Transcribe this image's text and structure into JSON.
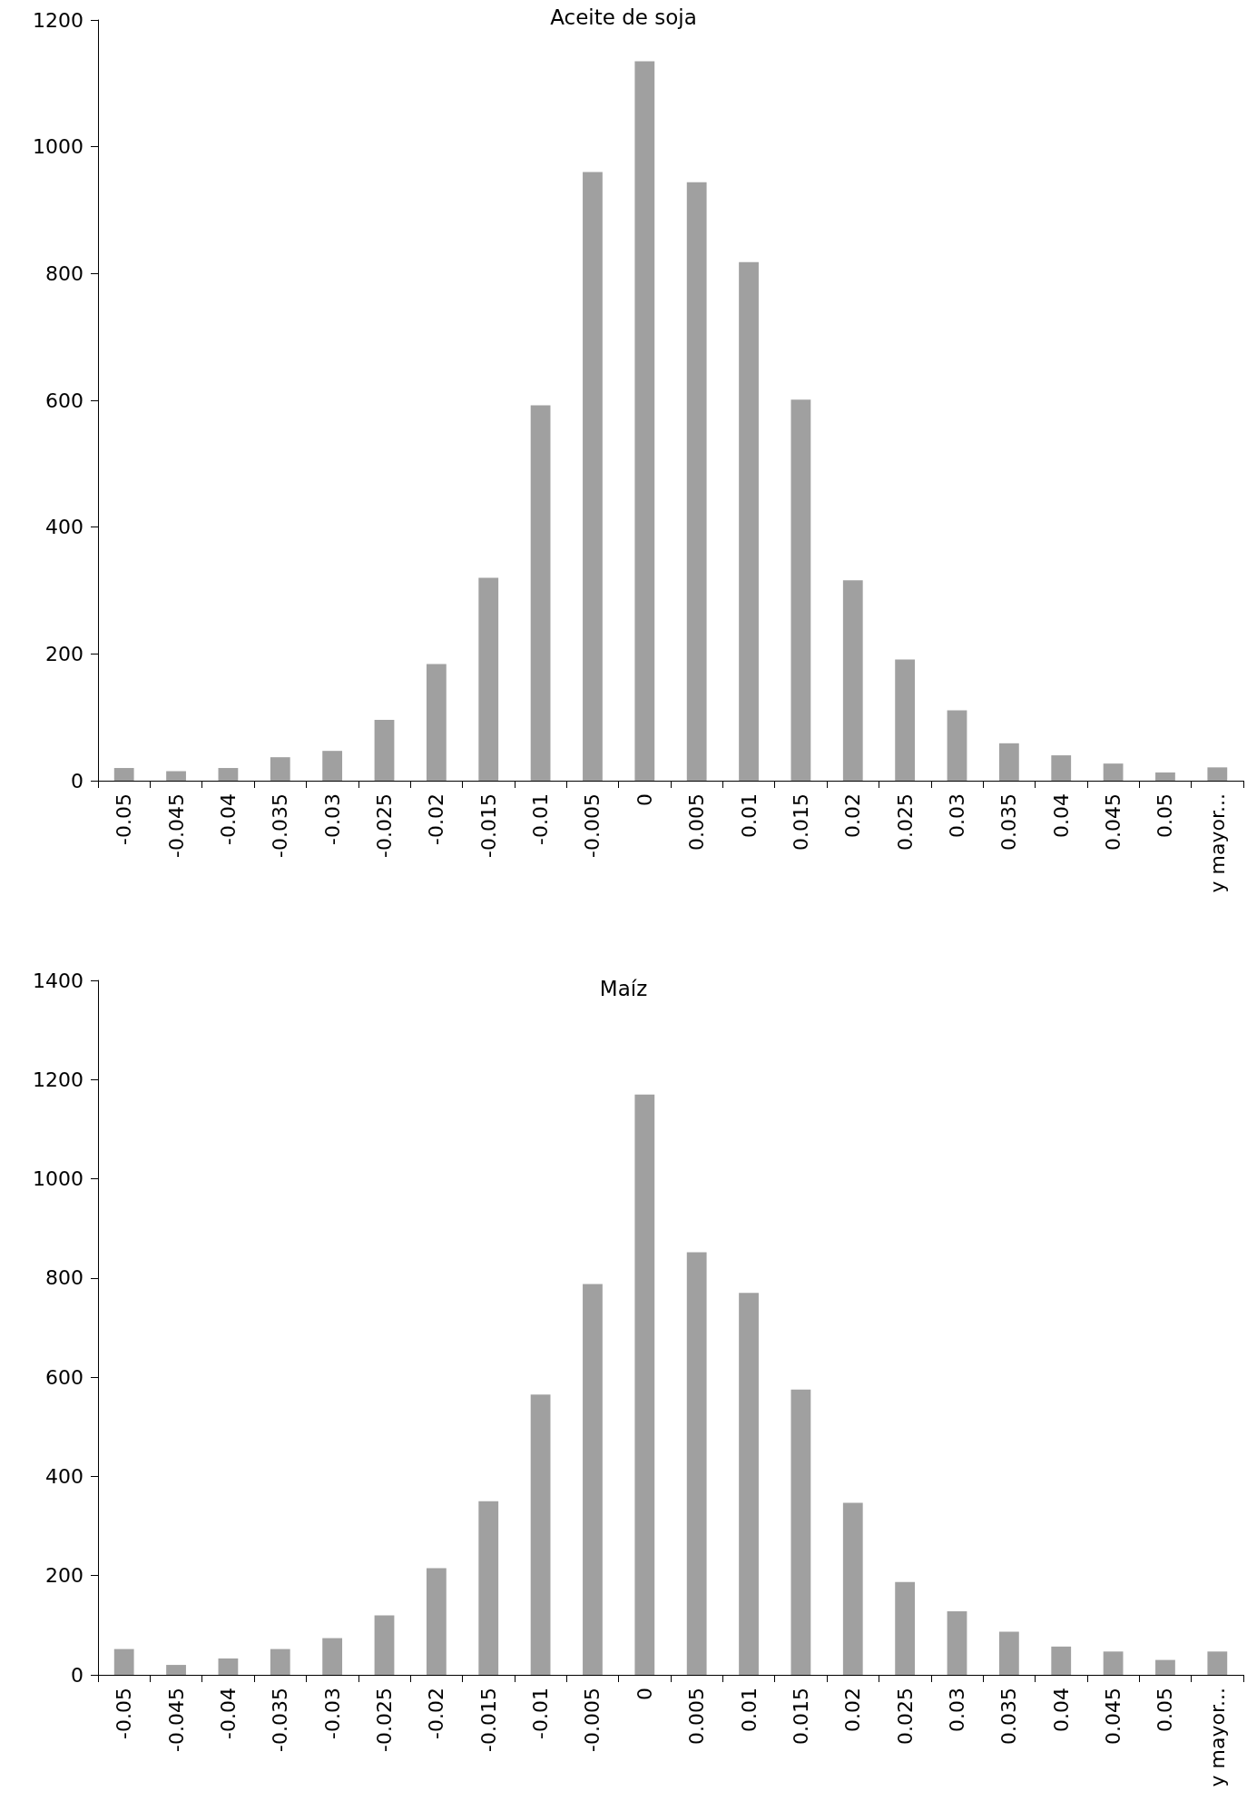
{
  "chart_data": [
    {
      "type": "bar",
      "title": "Aceite de soja",
      "categories": [
        "-0.05",
        "-0.045",
        "-0.04",
        "-0.035",
        "-0.03",
        "-0.025",
        "-0.02",
        "-0.015",
        "-0.01",
        "-0.005",
        "0",
        "0.005",
        "0.01",
        "0.015",
        "0.02",
        "0.025",
        "0.03",
        "0.035",
        "0.04",
        "0.045",
        "0.05",
        "y mayor..."
      ],
      "values": [
        20,
        15,
        20,
        37,
        47,
        96,
        184,
        320,
        592,
        960,
        1135,
        944,
        818,
        601,
        316,
        191,
        111,
        59,
        40,
        27,
        13,
        21
      ],
      "color": "#a0a0a0",
      "ylim": [
        0,
        1200
      ],
      "yticks": [
        0,
        200,
        400,
        600,
        800,
        1000,
        1200
      ],
      "grid": false
    },
    {
      "type": "bar",
      "title": "Maíz",
      "categories": [
        "-0.05",
        "-0.045",
        "-0.04",
        "-0.035",
        "-0.03",
        "-0.025",
        "-0.02",
        "-0.015",
        "-0.01",
        "-0.005",
        "0",
        "0.005",
        "0.01",
        "0.015",
        "0.02",
        "0.025",
        "0.03",
        "0.035",
        "0.04",
        "0.045",
        "0.05",
        "y mayor..."
      ],
      "values": [
        52,
        20,
        33,
        52,
        74,
        120,
        215,
        350,
        565,
        788,
        1170,
        852,
        770,
        575,
        347,
        187,
        128,
        87,
        57,
        47,
        30,
        47
      ],
      "color": "#a0a0a0",
      "ylim": [
        0,
        1400
      ],
      "yticks": [
        0,
        200,
        400,
        600,
        800,
        1000,
        1200,
        1400
      ],
      "grid": false
    }
  ]
}
